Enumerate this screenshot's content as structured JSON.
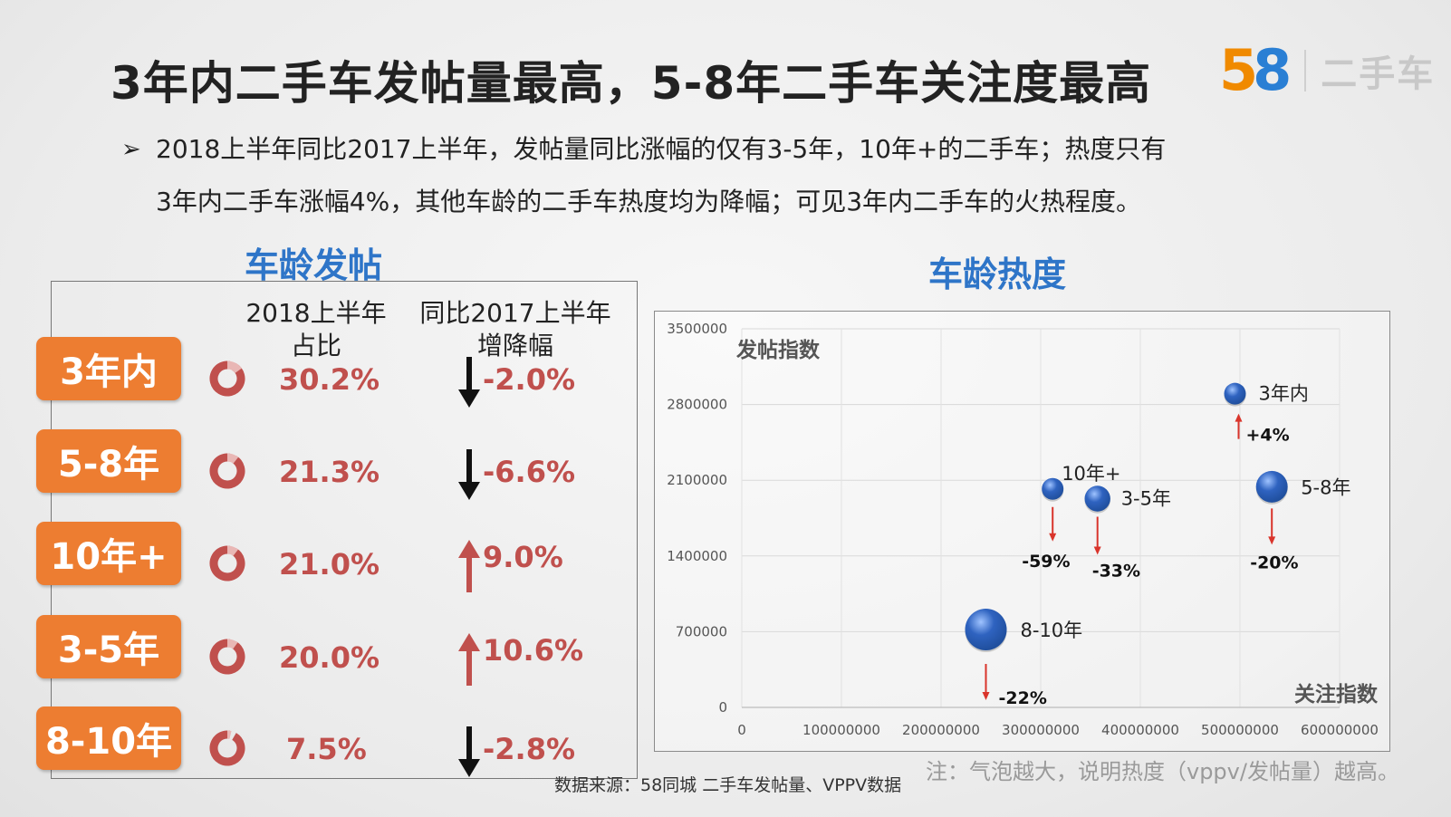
{
  "title": "3年内二手车发帖量最高，5-8年二手车关注度最高",
  "logo": {
    "num5": "5",
    "num8": "8",
    "text": "二手车"
  },
  "bullet": {
    "mark": "➢",
    "line1": "2018上半年同比2017上半年，发帖量同比涨幅的仅有3-5年，10年+的二手车；热度只有",
    "line2": "3年内二手车涨幅4%，其他车龄的二手车热度均为降幅；可见3年内二手车的火热程度。"
  },
  "left_section_title": "车龄发帖",
  "right_section_title": "车龄热度",
  "table": {
    "col1_line1": "2018上半年",
    "col1_line2": "占比",
    "col2_line1": "同比2017上半年",
    "col2_line2": "增降幅",
    "rows": [
      {
        "label": "3年内",
        "share": "30.2%",
        "share_value": 30.2,
        "change": "-2.0%",
        "direction": "down"
      },
      {
        "label": "5-8年",
        "share": "21.3%",
        "share_value": 21.3,
        "change": "-6.6%",
        "direction": "down"
      },
      {
        "label": "10年+",
        "share": "21.0%",
        "share_value": 21.0,
        "change": "9.0%",
        "direction": "up"
      },
      {
        "label": "3-5年",
        "share": "20.0%",
        "share_value": 20.0,
        "change": "10.6%",
        "direction": "up"
      },
      {
        "label": "8-10年",
        "share": "7.5%",
        "share_value": 7.5,
        "change": "-2.8%",
        "direction": "down"
      }
    ]
  },
  "colors": {
    "tag": "#ed7d31",
    "accent_red": "#c0504d",
    "title_blue": "#2e75c8",
    "bubble": "#1f4e9c"
  },
  "chart_data": {
    "type": "scatter",
    "subtype": "bubble",
    "title": "车龄热度",
    "xlabel": "关注指数",
    "ylabel": "发帖指数",
    "xlim": [
      0,
      600000000
    ],
    "ylim": [
      0,
      3500000
    ],
    "x_ticks": [
      "0",
      "100000000",
      "200000000",
      "300000000",
      "400000000",
      "500000000",
      "600000000"
    ],
    "y_ticks": [
      "0",
      "700000",
      "1400000",
      "2100000",
      "2800000",
      "3500000"
    ],
    "grid": true,
    "points": [
      {
        "label": "3年内",
        "x": 495000000,
        "y": 2900000,
        "size": 1.0,
        "change": "+4%",
        "direction": "up"
      },
      {
        "label": "10年+",
        "x": 312000000,
        "y": 2020000,
        "size": 1.0,
        "change": "-59%",
        "direction": "down"
      },
      {
        "label": "3-5年",
        "x": 357000000,
        "y": 1930000,
        "size": 1.2,
        "change": "-33%",
        "direction": "down"
      },
      {
        "label": "5-8年",
        "x": 532000000,
        "y": 2040000,
        "size": 1.5,
        "change": "-20%",
        "direction": "down"
      },
      {
        "label": "8-10年",
        "x": 245000000,
        "y": 720000,
        "size": 2.0,
        "change": "-22%",
        "direction": "down"
      }
    ]
  },
  "note": "注：气泡越大，说明热度（vppv/发帖量）越高。",
  "source": "数据来源：58同城 二手车发帖量、VPPV数据"
}
